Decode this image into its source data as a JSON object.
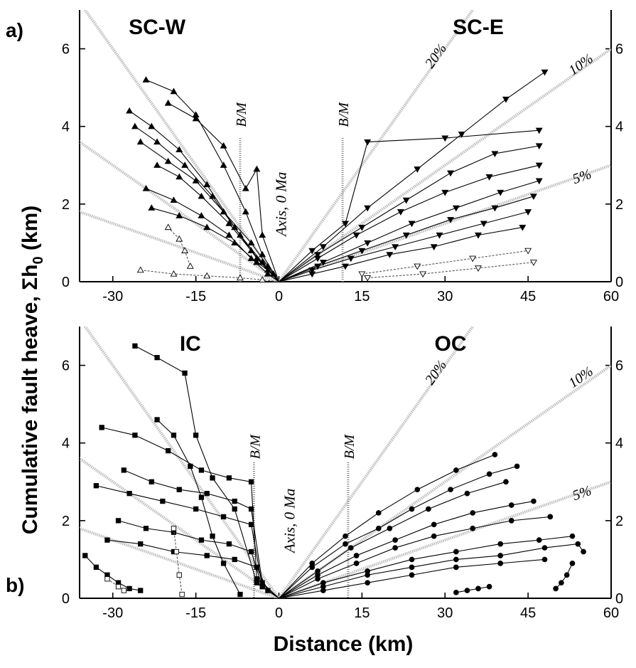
{
  "chart_data": [
    {
      "type": "line",
      "panel_label": "a)",
      "xlim": [
        -36,
        60
      ],
      "ylim": [
        0,
        7
      ],
      "x_ticks": [
        -30,
        -15,
        0,
        15,
        30,
        45,
        60
      ],
      "y_ticks_left": [
        0,
        2,
        4,
        6
      ],
      "y_ticks_right": [
        0,
        2,
        4,
        6
      ],
      "x_tick_labels": [
        "-30",
        "-15",
        "0",
        "15",
        "30",
        "45",
        "60"
      ],
      "y_tick_labels": [
        "0",
        "2",
        "4",
        "6"
      ],
      "region_labels": [
        "SC-W",
        "SC-E"
      ],
      "axis_label": "Axis, 0 Ma",
      "bm_label": "B/M",
      "bm_lines_x": [
        -7,
        11.5
      ],
      "reference_lines": [
        {
          "label": "20%",
          "slope": 0.2
        },
        {
          "label": "10%",
          "slope": 0.1
        },
        {
          "label": "5%",
          "slope": 0.05
        }
      ],
      "series": [
        {
          "side": "west",
          "marker": "triangle-up",
          "x": [
            -24,
            -19,
            -15,
            -10,
            -6,
            -3,
            0
          ],
          "y": [
            5.2,
            4.9,
            4.3,
            3.0,
            1.8,
            0.7,
            0.0
          ]
        },
        {
          "side": "west",
          "marker": "triangle-up",
          "x": [
            -27,
            -23,
            -18,
            -13,
            -8,
            -4,
            0
          ],
          "y": [
            4.4,
            4.0,
            3.4,
            2.5,
            1.4,
            0.6,
            0.0
          ]
        },
        {
          "side": "west",
          "marker": "triangle-up",
          "x": [
            -26,
            -22,
            -17,
            -12,
            -7,
            -3,
            0
          ],
          "y": [
            4.0,
            3.6,
            3.0,
            2.2,
            1.2,
            0.5,
            0.0
          ]
        },
        {
          "side": "west",
          "marker": "triangle-up",
          "x": [
            -25,
            -20,
            -15,
            -10,
            -5,
            -2,
            0
          ],
          "y": [
            3.6,
            3.1,
            2.6,
            1.8,
            1.0,
            0.4,
            0.0
          ]
        },
        {
          "side": "west",
          "marker": "triangle-up",
          "x": [
            -22,
            -18,
            -14,
            -9,
            -5,
            -2,
            0
          ],
          "y": [
            3.0,
            2.7,
            2.2,
            1.5,
            0.8,
            0.3,
            0.0
          ]
        },
        {
          "side": "west",
          "marker": "triangle-up",
          "x": [
            -24,
            -19,
            -14,
            -9,
            -5,
            -2,
            0
          ],
          "y": [
            2.4,
            2.1,
            1.7,
            1.2,
            0.6,
            0.2,
            0.0
          ]
        },
        {
          "side": "west",
          "marker": "triangle-up",
          "x": [
            -23,
            -18,
            -13,
            -8,
            -4,
            -1,
            0
          ],
          "y": [
            1.9,
            1.7,
            1.4,
            1.0,
            0.5,
            0.2,
            0.0
          ]
        },
        {
          "side": "west",
          "marker": "triangle-up",
          "x": [
            -20,
            -15,
            -10,
            -6,
            -4,
            -3,
            0
          ],
          "y": [
            4.6,
            4.2,
            3.5,
            2.4,
            2.9,
            1.2,
            0.0
          ]
        },
        {
          "side": "west",
          "marker": "triangle-open",
          "x": [
            -25,
            -19,
            -13,
            -7,
            -3,
            0
          ],
          "y": [
            0.3,
            0.2,
            0.15,
            0.1,
            0.05,
            0.0
          ]
        },
        {
          "side": "west",
          "marker": "triangle-open",
          "x": [
            -20,
            -18,
            -17,
            -16
          ],
          "y": [
            1.4,
            1.1,
            0.8,
            0.4
          ]
        },
        {
          "side": "east",
          "marker": "triangle-down",
          "x": [
            0,
            8,
            16,
            25,
            33,
            41,
            48
          ],
          "y": [
            0.0,
            0.9,
            1.9,
            2.9,
            3.8,
            4.7,
            5.4
          ]
        },
        {
          "side": "east",
          "marker": "triangle-down",
          "x": [
            0,
            6,
            12,
            16,
            30,
            47
          ],
          "y": [
            0.0,
            0.8,
            1.5,
            3.6,
            3.7,
            3.9
          ]
        },
        {
          "side": "east",
          "marker": "triangle-down",
          "x": [
            0,
            7,
            15,
            23,
            31,
            39,
            47
          ],
          "y": [
            0.0,
            0.7,
            1.4,
            2.1,
            2.8,
            3.3,
            3.5
          ]
        },
        {
          "side": "east",
          "marker": "triangle-down",
          "x": [
            0,
            7,
            14,
            22,
            30,
            38,
            47
          ],
          "y": [
            0.0,
            0.6,
            1.2,
            1.8,
            2.3,
            2.7,
            3.0
          ]
        },
        {
          "side": "east",
          "marker": "triangle-down",
          "x": [
            0,
            8,
            16,
            24,
            32,
            40,
            47
          ],
          "y": [
            0.0,
            0.5,
            1.0,
            1.5,
            1.9,
            2.3,
            2.6
          ]
        },
        {
          "side": "east",
          "marker": "triangle-down",
          "x": [
            0,
            7,
            15,
            23,
            31,
            39,
            46
          ],
          "y": [
            0.0,
            0.4,
            0.8,
            1.2,
            1.6,
            1.9,
            2.2
          ]
        },
        {
          "side": "east",
          "marker": "triangle-down",
          "x": [
            0,
            6,
            13,
            21,
            29,
            37,
            45
          ],
          "y": [
            0.0,
            0.3,
            0.6,
            0.9,
            1.2,
            1.5,
            1.8
          ]
        },
        {
          "side": "east",
          "marker": "triangle-down",
          "x": [
            0,
            6,
            12,
            20,
            28,
            36,
            44
          ],
          "y": [
            0.0,
            0.2,
            0.4,
            0.7,
            0.9,
            1.2,
            1.4
          ]
        },
        {
          "side": "east",
          "marker": "triangle-open-down",
          "x": [
            15,
            25,
            35,
            45
          ],
          "y": [
            0.2,
            0.4,
            0.6,
            0.8
          ]
        },
        {
          "side": "east",
          "marker": "triangle-open-down",
          "x": [
            16,
            26,
            36,
            46
          ],
          "y": [
            0.1,
            0.2,
            0.35,
            0.5
          ]
        }
      ]
    },
    {
      "type": "line",
      "panel_label": "b)",
      "xlim": [
        -36,
        60
      ],
      "ylim": [
        0,
        7
      ],
      "x_ticks": [
        -30,
        -15,
        0,
        15,
        30,
        45,
        60
      ],
      "y_ticks_left": [
        0,
        2,
        4,
        6
      ],
      "y_ticks_right": [
        0,
        2,
        4,
        6
      ],
      "x_tick_labels": [
        "-30",
        "-15",
        "0",
        "15",
        "30",
        "45",
        "60"
      ],
      "y_tick_labels": [
        "0",
        "2",
        "4",
        "6"
      ],
      "region_labels": [
        "IC",
        "OC"
      ],
      "axis_label": "Axis, 0 Ma",
      "bm_label": "B/M",
      "bm_lines_x": [
        -4.5,
        12.5
      ],
      "reference_lines": [
        {
          "label": "20%",
          "slope": 0.2
        },
        {
          "label": "10%",
          "slope": 0.1
        },
        {
          "label": "5%",
          "slope": 0.05
        }
      ],
      "series": [
        {
          "side": "west",
          "marker": "square",
          "x": [
            -26,
            -22,
            -17,
            -15,
            -12,
            -8,
            -4,
            0
          ],
          "y": [
            6.5,
            6.2,
            5.8,
            4.2,
            3.1,
            2.3,
            0.4,
            0.0
          ]
        },
        {
          "side": "west",
          "marker": "square",
          "x": [
            -32,
            -26,
            -20,
            -14,
            -9,
            -5,
            -4,
            0
          ],
          "y": [
            4.4,
            4.2,
            3.8,
            3.3,
            3.1,
            3.0,
            0.5,
            0.0
          ]
        },
        {
          "side": "west",
          "marker": "square",
          "x": [
            -28,
            -23,
            -18,
            -13,
            -8,
            -5,
            -3,
            0
          ],
          "y": [
            3.3,
            3.0,
            2.8,
            2.7,
            2.5,
            2.3,
            0.4,
            0.0
          ]
        },
        {
          "side": "west",
          "marker": "square",
          "x": [
            -33,
            -27,
            -21,
            -15,
            -10,
            -5,
            -3,
            0
          ],
          "y": [
            2.9,
            2.7,
            2.5,
            2.3,
            2.1,
            1.9,
            0.3,
            0.0
          ]
        },
        {
          "side": "west",
          "marker": "square",
          "x": [
            -29,
            -24,
            -19,
            -14,
            -9,
            -5,
            -3,
            0
          ],
          "y": [
            2.0,
            1.8,
            1.7,
            1.5,
            1.4,
            1.2,
            0.3,
            0.0
          ]
        },
        {
          "side": "west",
          "marker": "square",
          "x": [
            -31,
            -25,
            -19,
            -13,
            -8,
            -4,
            -2,
            0
          ],
          "y": [
            1.5,
            1.4,
            1.2,
            1.1,
            1.0,
            0.8,
            0.2,
            0.0
          ]
        },
        {
          "side": "west",
          "marker": "square",
          "x": [
            -22,
            -19,
            -16,
            -14,
            -12,
            -10,
            -7
          ],
          "y": [
            4.6,
            4.2,
            3.4,
            2.6,
            1.6,
            0.9,
            0.1
          ]
        },
        {
          "side": "west",
          "marker": "square",
          "x": [
            -35,
            -33,
            -31,
            -29,
            -27,
            -25
          ],
          "y": [
            1.1,
            0.8,
            0.6,
            0.4,
            0.25,
            0.2
          ]
        },
        {
          "side": "west",
          "marker": "square-open",
          "x": [
            -31,
            -29,
            -28
          ],
          "y": [
            0.5,
            0.3,
            0.2
          ]
        },
        {
          "side": "west",
          "marker": "square-open",
          "x": [
            -19,
            -18.5,
            -18,
            -17.5
          ],
          "y": [
            1.8,
            1.2,
            0.6,
            0.1
          ]
        },
        {
          "side": "east",
          "marker": "circle",
          "x": [
            0,
            6,
            12,
            18,
            25,
            32,
            39
          ],
          "y": [
            0.0,
            0.9,
            1.6,
            2.2,
            2.8,
            3.3,
            3.7
          ]
        },
        {
          "side": "east",
          "marker": "circle",
          "x": [
            0,
            6,
            12,
            18,
            24,
            31,
            38,
            43
          ],
          "y": [
            0.0,
            0.8,
            1.4,
            1.8,
            2.3,
            2.8,
            3.2,
            3.4
          ]
        },
        {
          "side": "east",
          "marker": "circle",
          "x": [
            0,
            7,
            13,
            20,
            27,
            34,
            41
          ],
          "y": [
            0.0,
            0.7,
            1.3,
            1.8,
            2.3,
            2.7,
            3.0
          ]
        },
        {
          "side": "east",
          "marker": "circle",
          "x": [
            0,
            7,
            14,
            21,
            28,
            35,
            42,
            46
          ],
          "y": [
            0.0,
            0.6,
            1.1,
            1.5,
            1.9,
            2.2,
            2.4,
            2.5
          ]
        },
        {
          "side": "east",
          "marker": "circle",
          "x": [
            0,
            7,
            14,
            21,
            28,
            35,
            42,
            49
          ],
          "y": [
            0.0,
            0.5,
            0.9,
            1.3,
            1.6,
            1.8,
            2.0,
            2.1
          ]
        },
        {
          "side": "east",
          "marker": "circle",
          "x": [
            0,
            8,
            16,
            24,
            32,
            40,
            47,
            53
          ],
          "y": [
            0.0,
            0.4,
            0.7,
            1.0,
            1.2,
            1.4,
            1.5,
            1.6
          ]
        },
        {
          "side": "east",
          "marker": "circle",
          "x": [
            0,
            8,
            16,
            24,
            32,
            40,
            48,
            54,
            55
          ],
          "y": [
            0.0,
            0.3,
            0.6,
            0.8,
            1.0,
            1.1,
            1.3,
            1.4,
            1.2
          ]
        },
        {
          "side": "east",
          "marker": "circle",
          "x": [
            0,
            8,
            16,
            24,
            32,
            40,
            48
          ],
          "y": [
            0.0,
            0.2,
            0.4,
            0.6,
            0.8,
            0.9,
            1.0
          ]
        },
        {
          "side": "east",
          "marker": "circle",
          "x": [
            53,
            52,
            51,
            50
          ],
          "y": [
            0.9,
            0.6,
            0.4,
            0.25
          ]
        },
        {
          "side": "east",
          "marker": "circle",
          "x": [
            32,
            34,
            36,
            38
          ],
          "y": [
            0.15,
            0.2,
            0.25,
            0.3
          ]
        }
      ]
    }
  ],
  "labels": {
    "y_axis_title": "Cumulative fault heave, Σh",
    "y_axis_sub": "0",
    "y_axis_unit": " (km)",
    "x_axis_title": "Distance (km)"
  },
  "colors": {
    "reference_line": "#bdbdbd",
    "series": "#000000",
    "bm_line": "#7a7a7a"
  }
}
